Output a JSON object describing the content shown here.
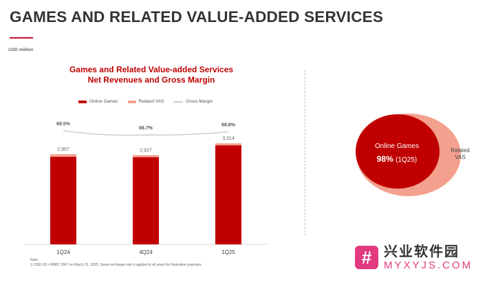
{
  "header": {
    "title": "GAMES AND RELATED VALUE-ADDED SERVICES",
    "units": "USD million"
  },
  "chart_data": [
    {
      "type": "bar",
      "title_line1": "Games and Related Value-added Services",
      "title_line2": "Net Revenues and Gross Margin",
      "categories": [
        "1Q24",
        "4Q24",
        "1Q25"
      ],
      "series": [
        {
          "name": "Online Games",
          "color": "#c00000",
          "values": [
            2875,
            2862,
            3249
          ]
        },
        {
          "name": "Related VAS",
          "color": "#f4a08e",
          "values": [
            82,
            65,
            65
          ]
        }
      ],
      "totals": [
        "2,957",
        "2,927",
        "3,314"
      ],
      "total_values": [
        2957,
        2927,
        3314
      ],
      "line_series": {
        "name": "Gross Margin",
        "color": "#cccccc",
        "values": [
          69.5,
          66.7,
          68.8
        ],
        "labels": [
          "69.5%",
          "66.7%",
          "68.8%"
        ]
      },
      "legend": [
        "Online Games",
        "Related VAS",
        "Gross Margin"
      ],
      "legend_placement": "top",
      "grid": false
    },
    {
      "type": "pie",
      "slices": [
        {
          "name": "Online Games",
          "percent": 98,
          "color": "#c00000"
        },
        {
          "name": "Related VAS",
          "percent": 2,
          "color": "#f4a08e"
        }
      ],
      "main_label": "Online Games",
      "main_value": "98%",
      "main_sub": "(1Q25)",
      "secondary_label_line1": "Related",
      "secondary_label_line2": "VAS"
    }
  ],
  "note": {
    "line1": "Note:",
    "line2": "1    US$1.00 = RMB7.2567 on March 31, 2025. Same exchange rate is applied to all years for illustrative purposes"
  },
  "watermark": {
    "cn": "兴业软件园",
    "en": "MYXYJS.COM",
    "badge": "#"
  }
}
